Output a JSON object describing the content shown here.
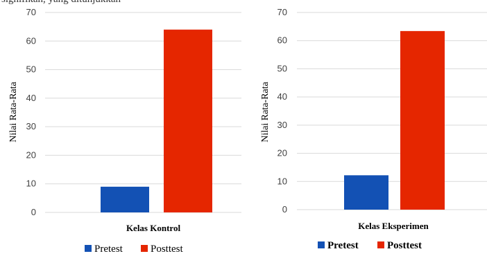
{
  "header_fragment": "signifikan,  yang   ditunjukkan",
  "colors": {
    "pretest": "#1351b4",
    "posttest": "#e52600"
  },
  "chart_data": [
    {
      "type": "bar",
      "xlabel": "Kelas Kontrol",
      "ylabel": "Nilai Rata-Rata",
      "ylim": [
        0,
        70
      ],
      "yticks": [
        "0",
        "10",
        "20",
        "30",
        "40",
        "50",
        "60",
        "70"
      ],
      "grid": true,
      "legend_placement": "bottom",
      "series": [
        {
          "name": "Pretest",
          "values": [
            9
          ]
        },
        {
          "name": "Posttest",
          "values": [
            64
          ]
        }
      ]
    },
    {
      "type": "bar",
      "xlabel": "Kelas Eksperimen",
      "ylabel": "Nilai Rata-Rata",
      "ylim": [
        0,
        70
      ],
      "yticks": [
        "0",
        "10",
        "20",
        "30",
        "40",
        "50",
        "60",
        "70"
      ],
      "grid": true,
      "legend_placement": "bottom",
      "series": [
        {
          "name": "Pretest",
          "values": [
            12.2
          ]
        },
        {
          "name": "Posttest",
          "values": [
            63.4
          ]
        }
      ]
    }
  ]
}
